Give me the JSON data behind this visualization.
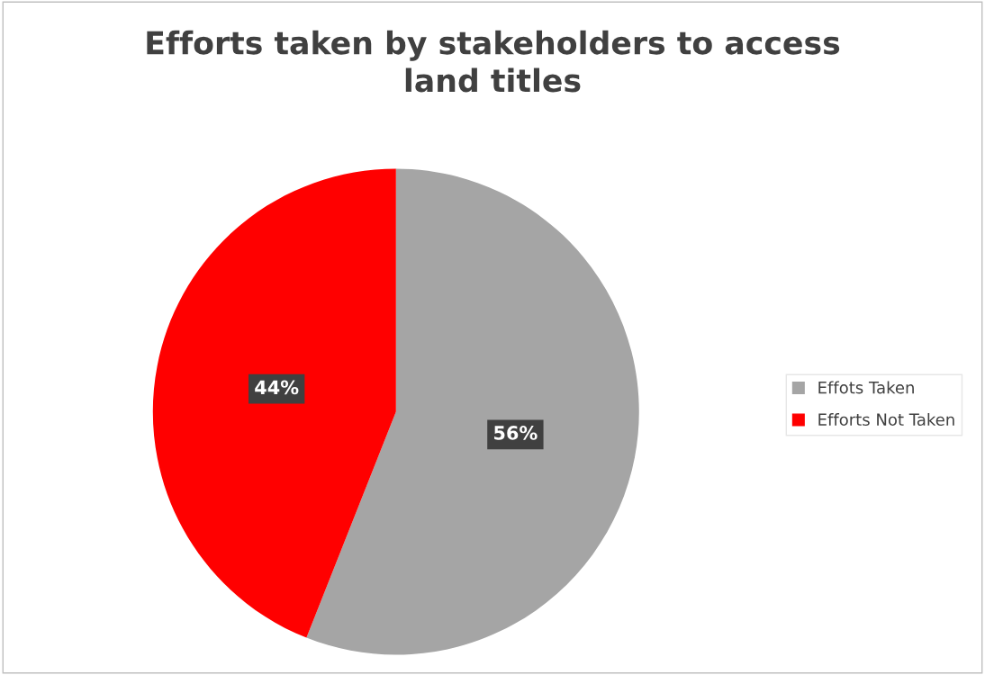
{
  "chart_data": {
    "type": "pie",
    "title": "Efforts taken by stakeholders to access\nland titles",
    "categories": [
      "Effots Taken",
      "Efforts Not Taken"
    ],
    "values": [
      56,
      44
    ],
    "colors": [
      "#a5a5a5",
      "#ff0000"
    ],
    "value_labels": [
      "56%",
      "44%"
    ],
    "legend": "right"
  }
}
